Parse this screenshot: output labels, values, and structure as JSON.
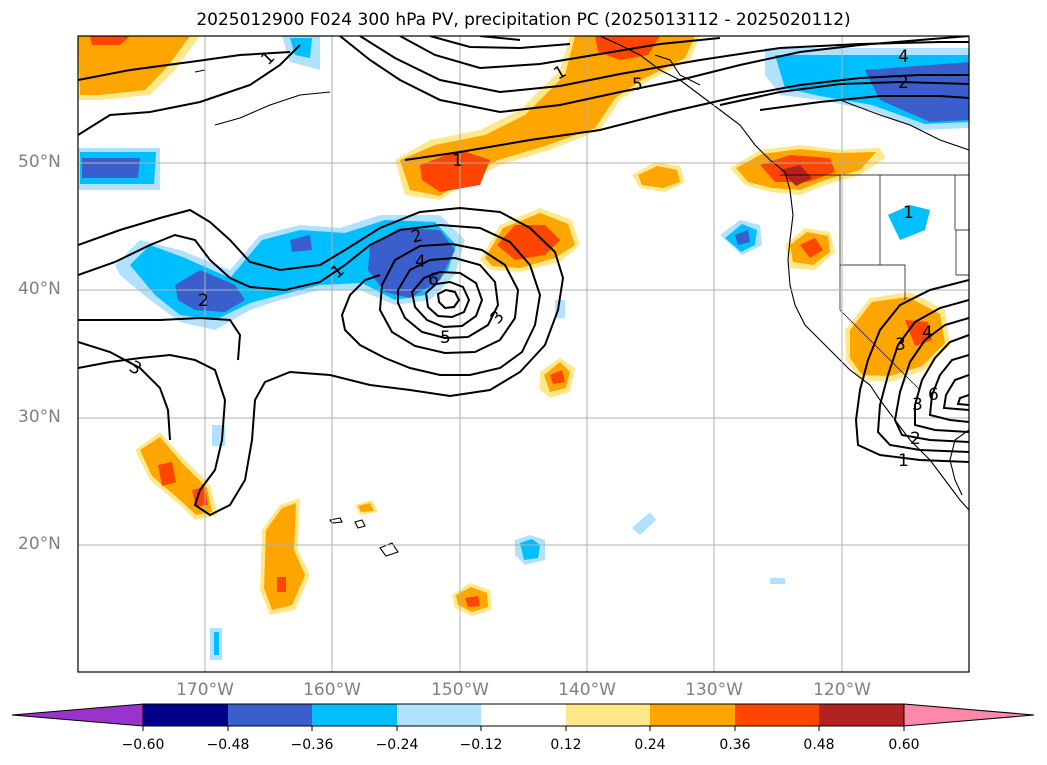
{
  "title": "2025012900 F024 300 hPa PV, precipitation PC (2025013112 - 2025020112)",
  "map": {
    "lat_ticks": [
      "50°N",
      "40°N",
      "30°N",
      "20°N"
    ],
    "lon_ticks": [
      "170°W",
      "160°W",
      "150°W",
      "140°W",
      "130°W",
      "120°W"
    ],
    "grid": true
  },
  "colorbar": {
    "ticks": [
      "−0.60",
      "−0.48",
      "−0.36",
      "−0.24",
      "−0.12",
      "0.12",
      "0.24",
      "0.36",
      "0.48",
      "0.60"
    ],
    "colors": [
      "#9933cc",
      "#00008b",
      "#3a5fcd",
      "#00bfff",
      "#b0e2ff",
      "#ffffff",
      "#ffe88a",
      "#ffa500",
      "#ff4500",
      "#b22222",
      "#ff88aa"
    ]
  },
  "contour_labels": [
    "1",
    "2",
    "3",
    "4",
    "5",
    "6"
  ]
}
